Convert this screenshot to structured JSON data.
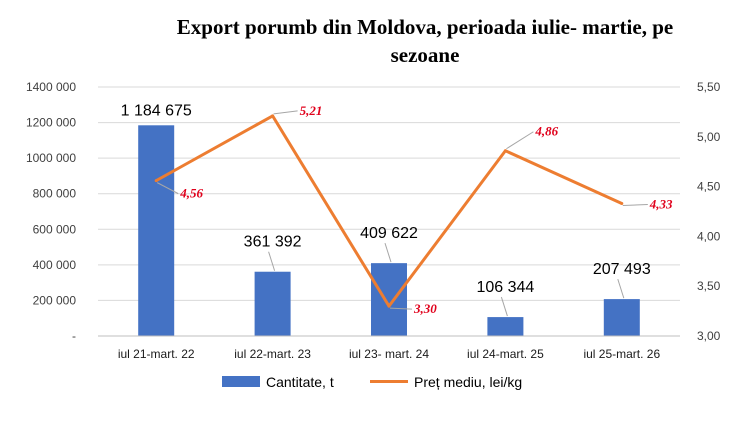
{
  "chart_data": {
    "type": "bar",
    "title_line1": "Export porumb din Moldova, perioada iulie- martie, pe",
    "title_line2": "sezoane",
    "categories": [
      "iul 21-mart. 22",
      "iul 22-mart. 23",
      "iul 23- mart. 24",
      "iul 24-mart. 25",
      "iul 25-mart. 26"
    ],
    "series": [
      {
        "name": "Cantitate, t",
        "type": "bar",
        "axis": "left",
        "color": "#4472c4",
        "values": [
          1184675,
          361392,
          409622,
          106344,
          207493
        ],
        "labels": [
          "1 184 675",
          "361 392",
          "409 622",
          "106 344",
          "207 493"
        ]
      },
      {
        "name": "Preț mediu, lei/kg",
        "type": "line",
        "axis": "right",
        "color": "#ed7d31",
        "label_color": "#e0001b",
        "values": [
          4.56,
          5.21,
          3.3,
          4.86,
          4.33
        ],
        "labels": [
          "4,56",
          "5,21",
          "3,30",
          "4,86",
          "4,33"
        ]
      }
    ],
    "y_left": {
      "ylim": [
        0,
        1400000
      ],
      "ticks": [
        0,
        200000,
        400000,
        600000,
        800000,
        1000000,
        1200000,
        1400000
      ],
      "tick_labels": [
        "-",
        "200 000",
        "400 000",
        "600 000",
        "800 000",
        "1000 000",
        "1200 000",
        "1400 000"
      ]
    },
    "y_right": {
      "ylim": [
        3.0,
        5.5
      ],
      "ticks": [
        3.0,
        3.5,
        4.0,
        4.5,
        5.0,
        5.5
      ],
      "tick_labels": [
        "3,00",
        "3,50",
        "4,00",
        "4,50",
        "5,00",
        "5,50"
      ]
    },
    "grid": true,
    "legend_position": "bottom"
  }
}
